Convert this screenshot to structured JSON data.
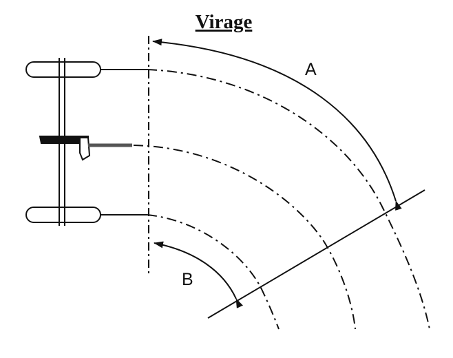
{
  "title": "Virage",
  "labels": {
    "a": "A",
    "b": "B"
  },
  "colors": {
    "ink": "#111111",
    "background": "#ffffff"
  }
}
